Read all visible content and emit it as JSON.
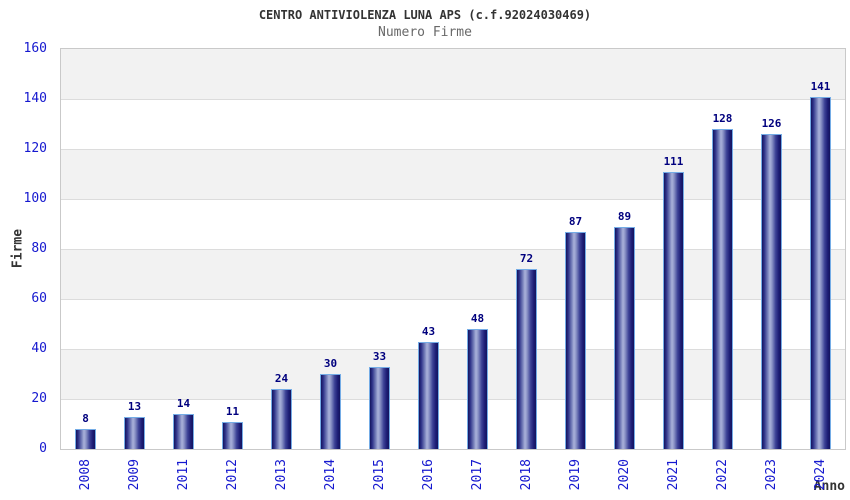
{
  "chart_data": {
    "type": "bar",
    "title": "CENTRO ANTIVIOLENZA LUNA APS (c.f.92024030469)",
    "subtitle": "Numero Firme",
    "xlabel": "Anno",
    "ylabel": "Firme",
    "categories": [
      "2008",
      "2009",
      "2011",
      "2012",
      "2013",
      "2014",
      "2015",
      "2016",
      "2017",
      "2018",
      "2019",
      "2020",
      "2021",
      "2022",
      "2023",
      "2024"
    ],
    "values": [
      8,
      13,
      14,
      11,
      24,
      30,
      33,
      43,
      48,
      72,
      87,
      89,
      111,
      128,
      126,
      141
    ],
    "ylim": [
      0,
      160
    ],
    "ytick_step": 20,
    "legend": "none",
    "grid": "horizontal-bands-every-20",
    "colors": {
      "tick_label_blue": "#1518cf",
      "value_label_navy": "#00007e",
      "bar_dark": "#14145e",
      "bar_highlight": "#aab2da",
      "bar_outline": "#74ace6",
      "band_gray": "#f2f2f2",
      "band_white": "#ffffff",
      "title_text": "#333333",
      "subtitle_text": "#696969"
    }
  }
}
